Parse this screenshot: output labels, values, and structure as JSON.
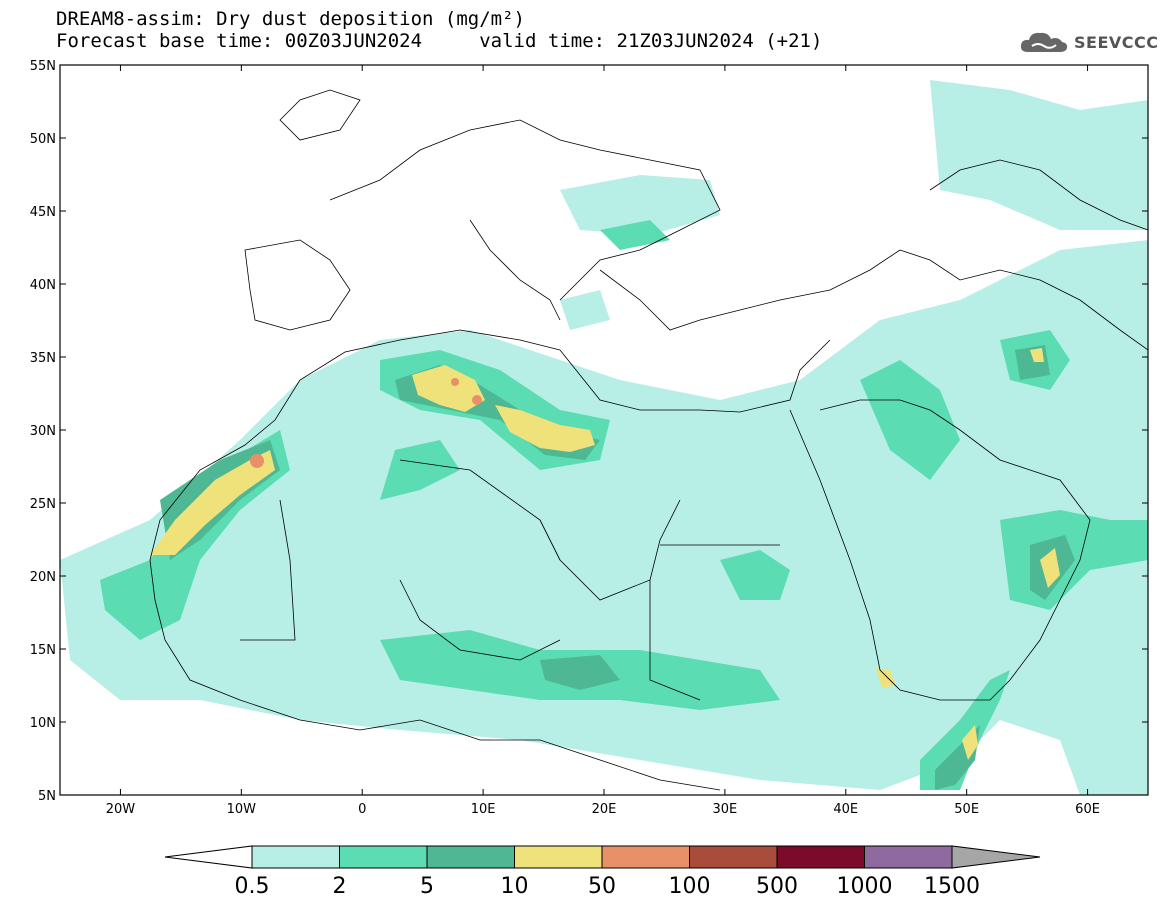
{
  "header": {
    "line1": "DREAM8-assim: Dry dust deposition (mg/m²)",
    "line2": "Forecast base time: 00Z03JUN2024     valid time: 21Z03JUN2024 (+21)"
  },
  "logo": {
    "text": "SEEVCCC",
    "icon": "cloud-icon"
  },
  "map": {
    "lon_range": [
      -25,
      65
    ],
    "lat_range": [
      5,
      55
    ],
    "lat_ticks": [
      "5N",
      "10N",
      "15N",
      "20N",
      "25N",
      "30N",
      "35N",
      "40N",
      "45N",
      "50N",
      "55N"
    ],
    "lon_ticks": [
      "20W",
      "10W",
      "0",
      "10E",
      "20E",
      "30E",
      "40E",
      "50E",
      "60E"
    ]
  },
  "colorbar": {
    "labels": [
      "0.5",
      "2",
      "5",
      "10",
      "50",
      "100",
      "500",
      "1000",
      "1500"
    ],
    "colors": [
      "#b7eee6",
      "#5cdcb3",
      "#4db893",
      "#f0e27a",
      "#e89068",
      "#a94c3c",
      "#7c0a2a",
      "#8e6aa0"
    ],
    "under_color": "#ffffff",
    "over_color": "#a6a6a6"
  }
}
